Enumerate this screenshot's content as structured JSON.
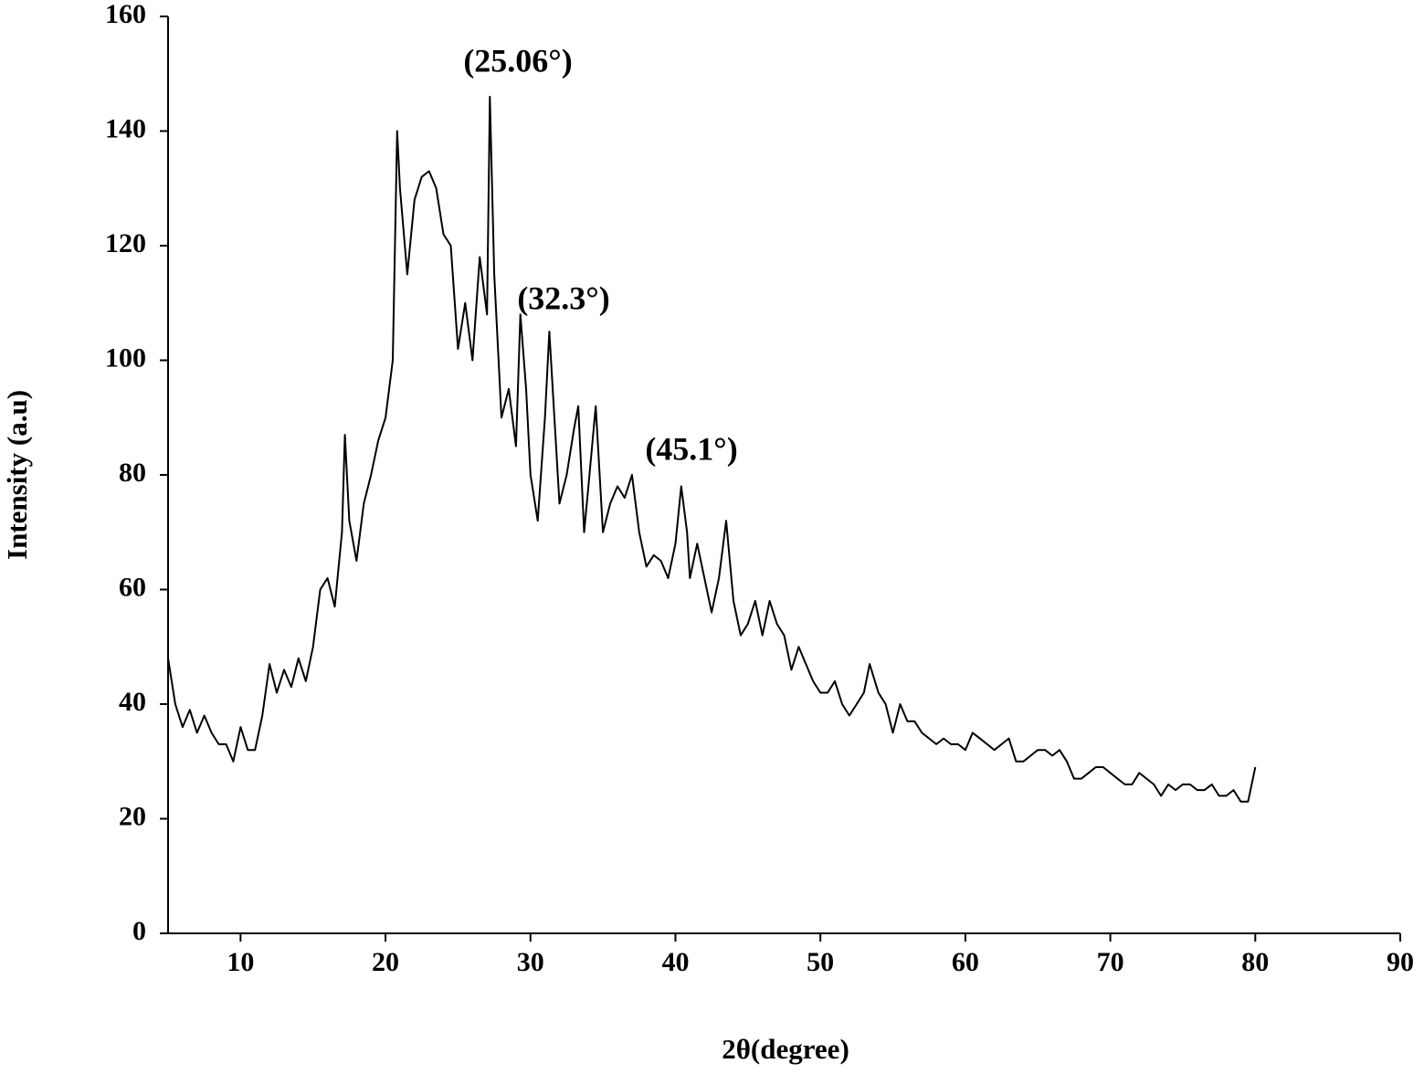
{
  "chart_data": {
    "type": "line",
    "xlabel": "2θ(degree)",
    "ylabel": "Intensity (a.u)",
    "annotations": [
      "(25.06°)",
      "(32.3°)",
      "(45.1°)"
    ],
    "color": "#000000",
    "xlim": [
      5,
      90
    ],
    "xticks": [
      10,
      20,
      30,
      40,
      50,
      60,
      70,
      80,
      90
    ],
    "ylim": [
      0,
      160
    ],
    "yticks": [
      0,
      20,
      40,
      60,
      80,
      100,
      120,
      140,
      160
    ],
    "grid": false,
    "x": [
      5.0,
      5.5,
      6.0,
      6.5,
      7.0,
      7.5,
      8.0,
      8.5,
      9.0,
      9.5,
      10.0,
      10.5,
      11.0,
      11.5,
      12.0,
      12.5,
      13.0,
      13.5,
      14.0,
      14.5,
      15.0,
      15.5,
      16.0,
      16.5,
      17.0,
      17.2,
      17.5,
      18.0,
      18.5,
      19.0,
      19.5,
      20.0,
      20.5,
      20.8,
      21.0,
      21.5,
      22.0,
      22.5,
      23.0,
      23.5,
      24.0,
      24.5,
      25.0,
      25.5,
      26.0,
      26.5,
      27.0,
      27.2,
      27.5,
      28.0,
      28.5,
      29.0,
      29.3,
      29.7,
      30.0,
      30.5,
      31.0,
      31.3,
      31.7,
      32.0,
      32.5,
      33.0,
      33.3,
      33.7,
      34.0,
      34.5,
      35.0,
      35.5,
      36.0,
      36.5,
      37.0,
      37.5,
      38.0,
      38.5,
      39.0,
      39.5,
      40.0,
      40.4,
      40.8,
      41.0,
      41.5,
      42.0,
      42.5,
      43.0,
      43.5,
      44.0,
      44.5,
      45.0,
      45.5,
      46.0,
      46.5,
      47.0,
      47.5,
      48.0,
      48.5,
      49.0,
      49.5,
      50.0,
      50.5,
      51.0,
      51.5,
      52.0,
      52.5,
      53.0,
      53.4,
      54.0,
      54.5,
      55.0,
      55.5,
      56.0,
      56.5,
      57.0,
      57.5,
      58.0,
      58.5,
      59.0,
      59.5,
      60.0,
      60.5,
      61.0,
      61.5,
      62.0,
      62.5,
      63.0,
      63.5,
      64.0,
      64.5,
      65.0,
      65.5,
      66.0,
      66.5,
      67.0,
      67.5,
      68.0,
      68.5,
      69.0,
      69.5,
      70.0,
      70.5,
      71.0,
      71.5,
      72.0,
      72.5,
      73.0,
      73.5,
      74.0,
      74.5,
      75.0,
      75.5,
      76.0,
      76.5,
      77.0,
      77.5,
      78.0,
      78.5,
      79.0,
      79.5,
      80.0
    ],
    "values": [
      48,
      40,
      36,
      39,
      35,
      38,
      35,
      33,
      33,
      30,
      36,
      32,
      32,
      38,
      47,
      42,
      46,
      43,
      48,
      44,
      50,
      60,
      62,
      57,
      70,
      87,
      72,
      65,
      75,
      80,
      86,
      90,
      100,
      140,
      130,
      115,
      128,
      132,
      133,
      130,
      122,
      120,
      102,
      110,
      100,
      118,
      108,
      146,
      115,
      90,
      95,
      85,
      108,
      95,
      80,
      72,
      90,
      105,
      88,
      75,
      80,
      88,
      92,
      70,
      78,
      92,
      70,
      75,
      78,
      76,
      80,
      70,
      64,
      66,
      65,
      62,
      68,
      78,
      70,
      62,
      68,
      62,
      56,
      62,
      72,
      58,
      52,
      54,
      58,
      52,
      58,
      54,
      52,
      46,
      50,
      47,
      44,
      42,
      42,
      44,
      40,
      38,
      40,
      42,
      47,
      42,
      40,
      35,
      40,
      37,
      37,
      35,
      34,
      33,
      34,
      33,
      33,
      32,
      35,
      34,
      33,
      32,
      33,
      34,
      30,
      30,
      31,
      32,
      32,
      31,
      32,
      30,
      27,
      27,
      28,
      29,
      29,
      28,
      27,
      26,
      26,
      28,
      27,
      26,
      24,
      26,
      25,
      26,
      26,
      25,
      25,
      26,
      24,
      24,
      25,
      23,
      23,
      29
    ]
  }
}
